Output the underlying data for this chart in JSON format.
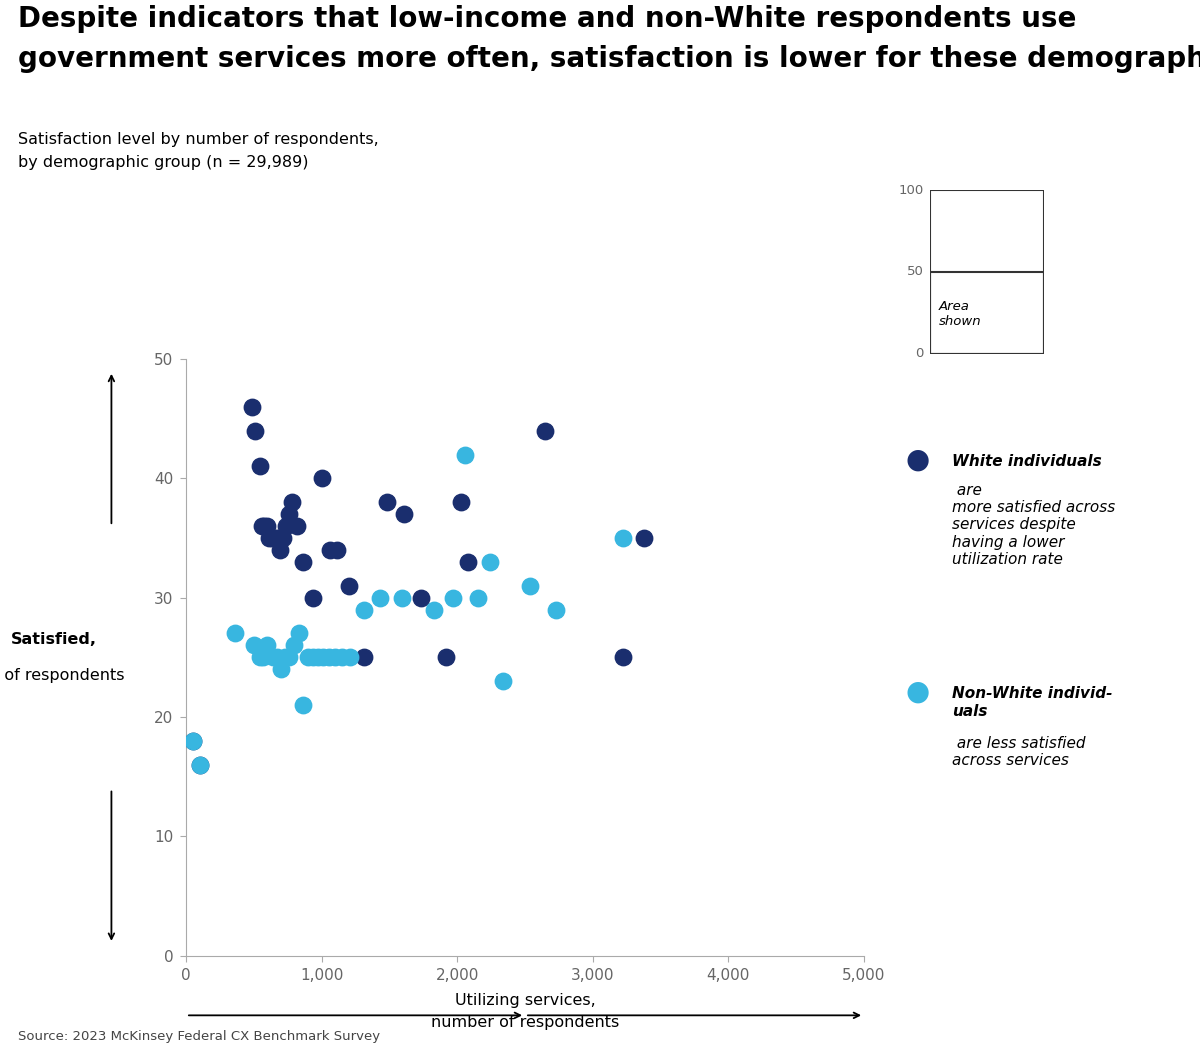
{
  "title_line1": "Despite indicators that low-income and non-White respondents use",
  "title_line2": "government services more often, satisfaction is lower for these demographics.",
  "subtitle_line1": "Satisfaction level by number of respondents,",
  "subtitle_line2": "by demographic group (n = 29,989)",
  "xlabel_top": "Utilizing services,",
  "xlabel_bot": "number of respondents",
  "ylabel_top": "Satisfied,",
  "ylabel_bot": "% of respondents",
  "source": "Source: 2023 McKinsey Federal CX Benchmark Survey",
  "white_color": "#1a2e6e",
  "nonwhite_color": "#38b6e0",
  "xlim": [
    0,
    5000
  ],
  "ylim": [
    0,
    50
  ],
  "xticks": [
    0,
    1000,
    2000,
    3000,
    4000,
    5000
  ],
  "yticks": [
    0,
    10,
    20,
    30,
    40,
    50
  ],
  "white_x": [
    55,
    100,
    490,
    510,
    545,
    560,
    575,
    595,
    615,
    635,
    655,
    675,
    695,
    715,
    740,
    760,
    785,
    820,
    865,
    940,
    1000,
    1060,
    1110,
    1200,
    1310,
    1480,
    1610,
    1730,
    1920,
    2030,
    2080,
    2650,
    3220,
    3380
  ],
  "white_y": [
    18,
    16,
    46,
    44,
    41,
    36,
    36,
    36,
    35,
    35,
    35,
    35,
    34,
    35,
    36,
    37,
    38,
    36,
    33,
    30,
    40,
    34,
    34,
    31,
    25,
    38,
    37,
    30,
    25,
    38,
    33,
    44,
    25,
    35
  ],
  "nonwhite_x": [
    55,
    100,
    360,
    500,
    545,
    570,
    600,
    640,
    670,
    700,
    730,
    760,
    795,
    830,
    860,
    900,
    940,
    975,
    1010,
    1055,
    1100,
    1150,
    1210,
    1310,
    1430,
    1590,
    1830,
    1970,
    2060,
    2150,
    2240,
    2340,
    2540,
    2730,
    3220
  ],
  "nonwhite_y": [
    18,
    16,
    27,
    26,
    25,
    25,
    26,
    25,
    25,
    24,
    25,
    25,
    26,
    27,
    21,
    25,
    25,
    25,
    25,
    25,
    25,
    25,
    25,
    29,
    30,
    30,
    29,
    30,
    42,
    30,
    33,
    23,
    31,
    29,
    35
  ]
}
